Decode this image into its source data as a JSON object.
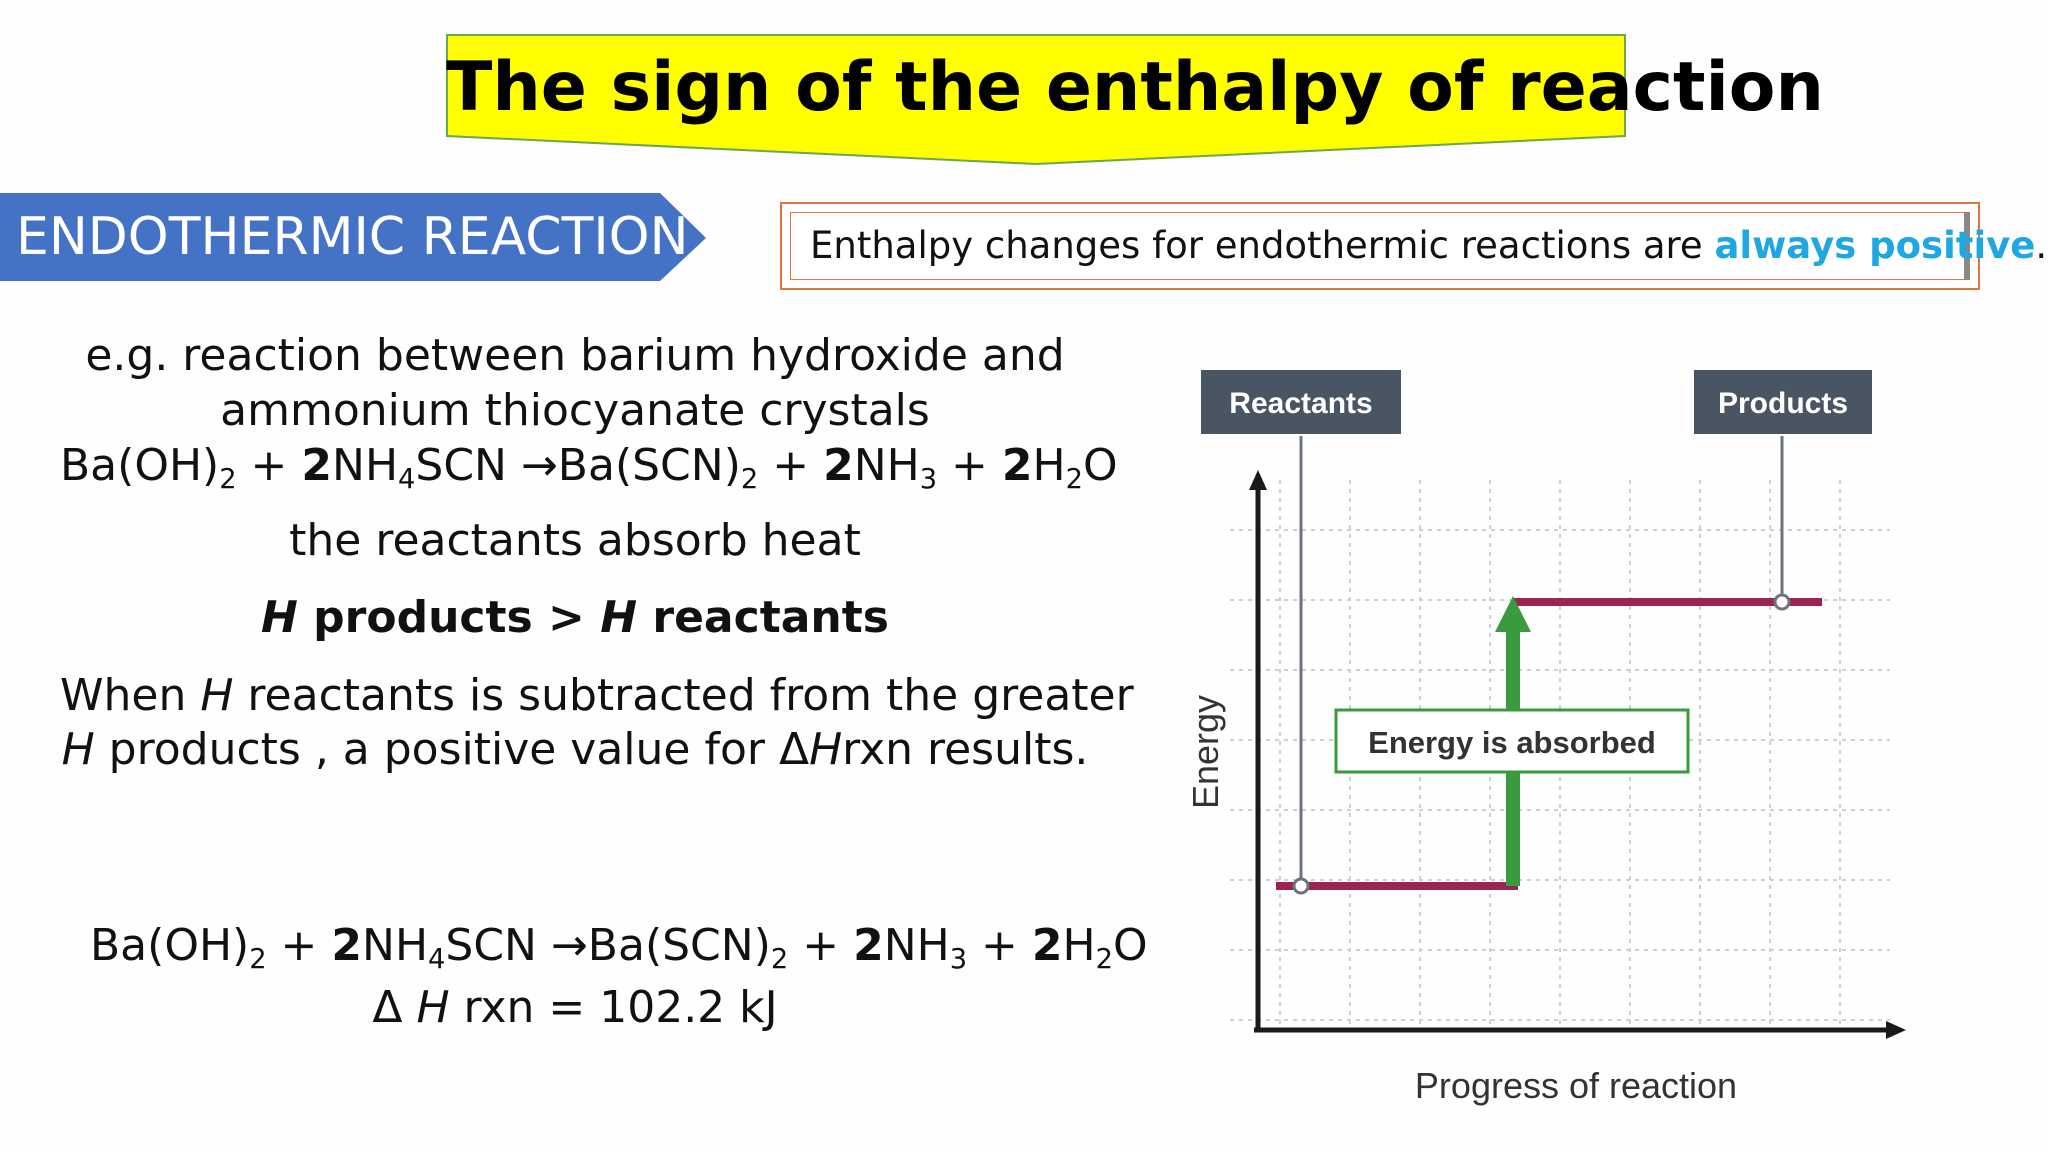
{
  "title": "The sign of the enthalpy of reaction",
  "section_label": "ENDOTHERMIC REACTION",
  "note": {
    "before": "Enthalpy changes for endothermic reactions are ",
    "highlight": "always positive",
    "after": "."
  },
  "example": {
    "line1": "e.g. reaction between barium hydroxide and",
    "line2": "ammonium thiocyanate crystals"
  },
  "equation": {
    "t1": "Ba(OH)",
    "s1": "2",
    "t2": " + ",
    "b1": "2",
    "t3": "NH",
    "s2": "4",
    "t4": "SCN →Ba(SCN)",
    "s3": "2",
    "t5": " + ",
    "b2": "2",
    "t6": "NH",
    "s4": "3",
    "t7": " + ",
    "b3": "2",
    "t8": "H",
    "s5": "2",
    "t9": "O"
  },
  "absorb_text": "the reactants absorb heat",
  "comparison": {
    "h1": "H",
    "p1": " products > ",
    "h2": "H",
    "p2": " reactants"
  },
  "explanation": {
    "a1": "When ",
    "h1": "H",
    "a2": " reactants is subtracted from the greater",
    "h2": "H",
    "a3": " products , a positive value for Δ",
    "h3": "H",
    "a4": "rxn results."
  },
  "delta": {
    "pre": "Δ ",
    "h": "H",
    "post": " rxn = 102.2 kJ"
  },
  "diagram": {
    "reactants_label": "Reactants",
    "products_label": "Products",
    "absorbed_label": "Energy is absorbed",
    "y_axis_label": "Energy",
    "x_axis_label": "Progress of reaction",
    "colors": {
      "level": "#9b2452",
      "arrow": "#3a9a3e",
      "label_box": "#4a5563",
      "grid": "#cfcfcf",
      "axis": "#1a1a1a"
    }
  }
}
